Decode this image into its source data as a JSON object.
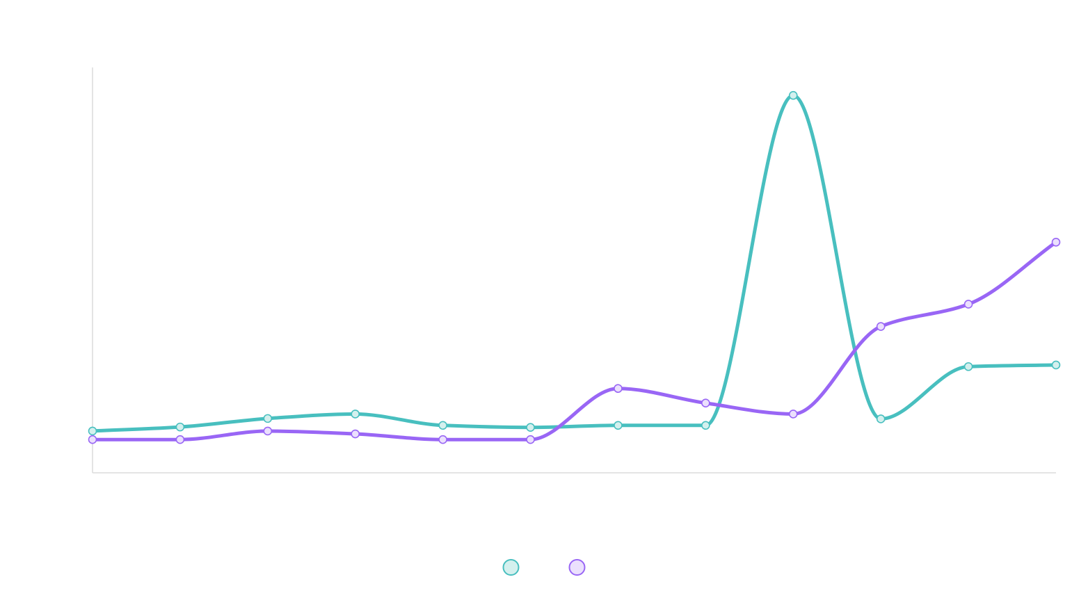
{
  "chart_data": {
    "type": "line",
    "title": "",
    "xlabel": "",
    "ylabel": "",
    "categories": [
      "",
      "",
      "",
      "",
      "",
      "",
      "",
      "",
      "",
      "",
      "",
      ""
    ],
    "ylim": [
      0,
      100
    ],
    "grid": false,
    "legend_position": "bottom-center",
    "smooth": true,
    "series": [
      {
        "color": "#48bfbf",
        "fill": "#d4f0ee",
        "values": [
          10.3,
          11.3,
          13.4,
          14.5,
          11.7,
          11.2,
          11.7,
          11.7,
          93.1,
          13.3,
          26.2,
          26.6
        ]
      },
      {
        "color": "#9966f5",
        "fill": "#ebe0fd",
        "values": [
          8.2,
          8.2,
          10.3,
          9.6,
          8.2,
          8.2,
          20.8,
          17.2,
          14.5,
          36.1,
          41.6,
          56.9
        ]
      }
    ]
  }
}
